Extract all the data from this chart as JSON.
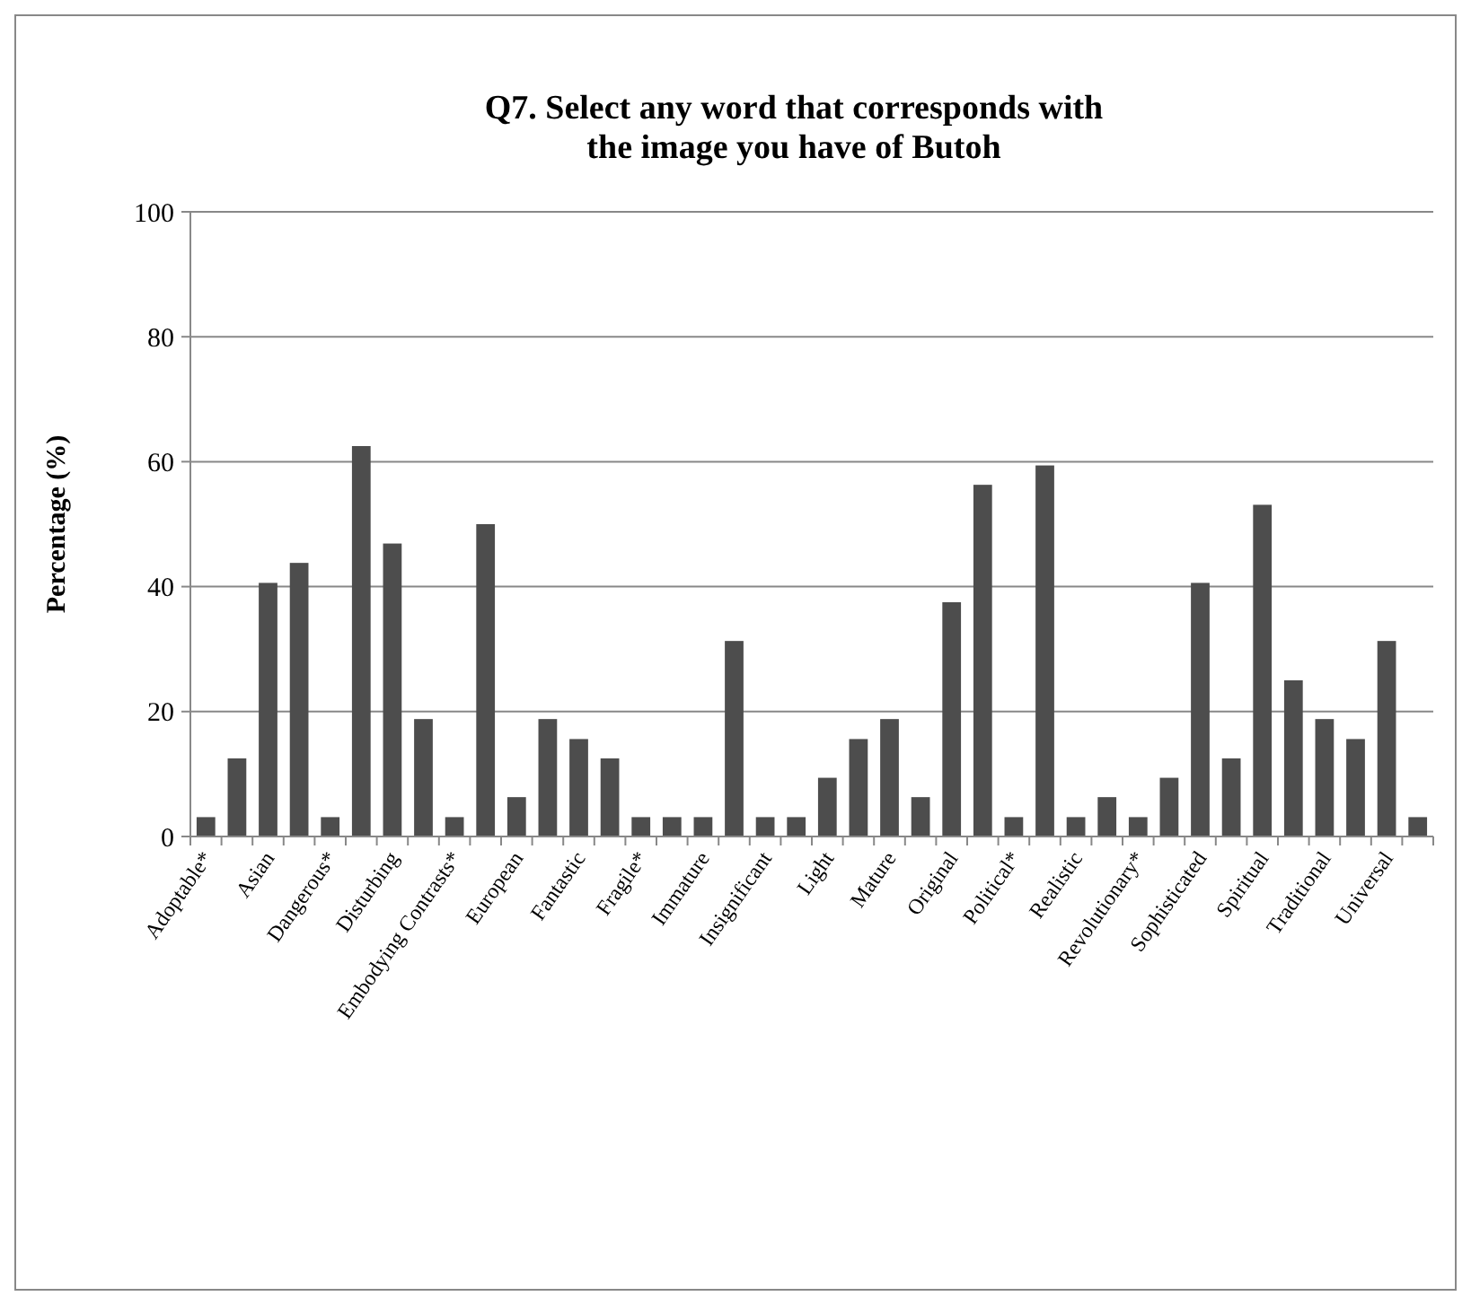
{
  "chart_data": {
    "type": "bar",
    "title": "Q7. Select any word that corresponds with\nthe image you have of Butoh",
    "ylabel": "Percentage (%)",
    "categories": [
      "Adoptable*",
      null,
      "Asian",
      null,
      "Dangerous*",
      null,
      "Disturbing",
      null,
      "Embodying Contrasts*",
      null,
      "European",
      null,
      "Fantastic",
      null,
      "Fragile*",
      null,
      "Immature",
      null,
      "Insignificant",
      null,
      "Light",
      null,
      "Mature",
      null,
      "Original",
      null,
      "Political*",
      null,
      "Realistic",
      null,
      "Revolutionary*",
      null,
      "Sophisticated",
      null,
      "Spiritual",
      null,
      "Traditional",
      null,
      "Universal",
      null
    ],
    "values": [
      3.1,
      12.5,
      40.6,
      43.8,
      3.1,
      62.5,
      46.9,
      18.8,
      3.1,
      50,
      6.3,
      18.8,
      15.6,
      12.5,
      3.1,
      3.1,
      3.1,
      31.3,
      3.1,
      3.1,
      9.4,
      15.6,
      18.8,
      6.3,
      37.5,
      56.3,
      3.1,
      59.4,
      3.1,
      6.3,
      3.1,
      9.4,
      40.6,
      12.5,
      53.1,
      25,
      18.8,
      15.6,
      31.3,
      3.1
    ],
    "color": "#4d4d4d",
    "ylim": [
      0,
      100
    ],
    "yticks": [
      0,
      20,
      40,
      60,
      80,
      100
    ],
    "grid": "y"
  }
}
